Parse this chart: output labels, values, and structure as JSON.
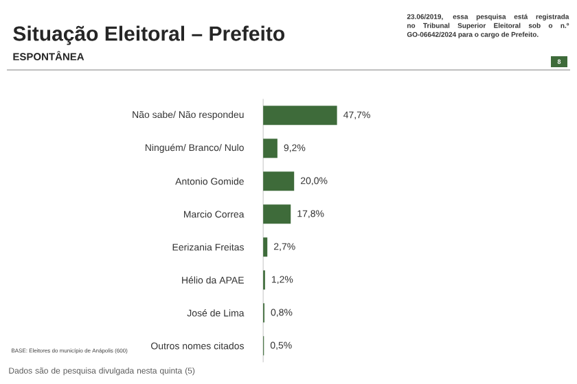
{
  "chart_data": {
    "type": "bar",
    "orientation": "horizontal",
    "title": "Situação Eleitoral – Prefeito",
    "subtitle": "ESPONTÂNEA",
    "categories": [
      "Não sabe/ Não respondeu",
      "Ninguém/ Branco/ Nulo",
      "Antonio Gomide",
      "Marcio Correa",
      "Eerizania Freitas",
      "Hélio da APAE",
      "José de Lima",
      "Outros nomes citados"
    ],
    "values": [
      47.7,
      9.2,
      20.0,
      17.8,
      2.7,
      1.2,
      0.8,
      0.5
    ],
    "value_labels": [
      "47,7%",
      "9,2%",
      "20,0%",
      "17,8%",
      "2,7%",
      "1,2%",
      "0,8%",
      "0,5%"
    ],
    "color": "#3e6b3a",
    "tick_labels": "y",
    "annotations": [
      "23.06/2019, essa pesquisa está registrada no Tribunal Superior Eleitoral sob o n.º GO-06642/2024 para o cargo de Prefeito.",
      "8",
      "BASE: Eleitores do município de Anápolis (600)",
      "Dados são de pesquisa divulgada nesta quinta (5)"
    ]
  }
}
